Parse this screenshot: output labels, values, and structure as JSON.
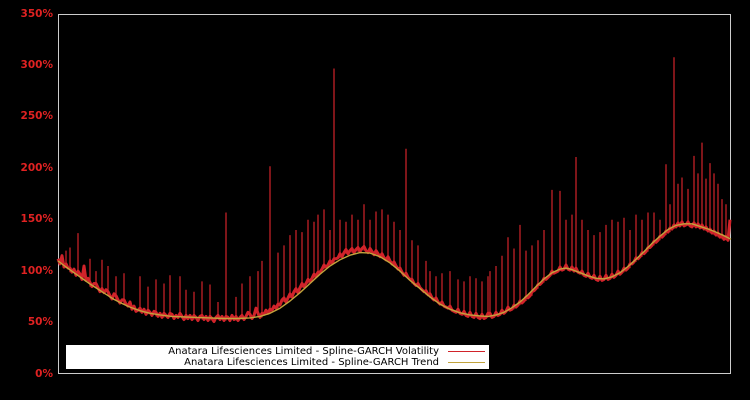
{
  "window": {
    "background": "#000000"
  },
  "chart_data": {
    "type": "line",
    "title": "",
    "xlabel": "",
    "ylabel": "",
    "grid": false,
    "legend_position": "lower-left-inside",
    "ylim": [
      0,
      350
    ],
    "y_unit": "percent",
    "yticks": [
      {
        "label": "0%",
        "value": 0
      },
      {
        "label": "50%",
        "value": 50
      },
      {
        "label": "100%",
        "value": 100
      },
      {
        "label": "150%",
        "value": 150
      },
      {
        "label": "200%",
        "value": 200
      },
      {
        "label": "250%",
        "value": 250
      },
      {
        "label": "300%",
        "value": 300
      },
      {
        "label": "350%",
        "value": 350
      }
    ],
    "colors": {
      "background": "#000000",
      "plot_border": "#cccccc",
      "axis_label": "#e02222",
      "volatility": "#d1232a",
      "trend": "#c2a33c",
      "legend_bg": "#ffffff",
      "legend_text": "#000000"
    },
    "series": [
      {
        "name": "Anatara Lifesciences Limited - Spline-GARCH Volatility",
        "color": "#d1232a"
      },
      {
        "name": "Anatara Lifesciences Limited - Spline-GARCH Trend",
        "color": "#c2a33c"
      }
    ],
    "volatility": {
      "x0": 58,
      "dx": 2,
      "unit": "percent",
      "values": [
        112,
        107,
        115,
        104,
        120,
        103,
        123,
        99,
        102,
        96,
        137,
        97,
        92,
        105,
        91,
        93,
        112,
        85,
        88,
        100,
        84,
        80,
        111,
        79,
        82,
        105,
        76,
        73,
        78,
        95,
        72,
        69,
        72,
        98,
        68,
        66,
        70,
        63,
        66,
        61,
        62,
        95,
        60,
        63,
        58,
        85,
        60,
        57,
        61,
        92,
        56,
        59,
        55,
        88,
        57,
        55,
        96,
        58,
        54,
        57,
        55,
        95,
        56,
        53,
        82,
        54,
        57,
        53,
        80,
        55,
        52,
        56,
        90,
        53,
        56,
        52,
        87,
        54,
        51,
        55,
        70,
        53,
        56,
        52,
        157,
        55,
        52,
        57,
        53,
        75,
        52,
        55,
        88,
        53,
        56,
        60,
        95,
        54,
        57,
        64,
        100,
        55,
        110,
        58,
        62,
        59,
        202,
        62,
        66,
        64,
        118,
        67,
        72,
        125,
        70,
        74,
        135,
        75,
        80,
        140,
        79,
        84,
        138,
        85,
        88,
        150,
        90,
        93,
        148,
        95,
        155,
        99,
        102,
        160,
        104,
        106,
        140,
        108,
        297,
        112,
        113,
        150,
        114,
        118,
        148,
        117,
        120,
        155,
        118,
        121,
        150,
        119,
        122,
        165,
        120,
        118,
        150,
        119,
        116,
        158,
        117,
        114,
        160,
        113,
        111,
        155,
        110,
        107,
        148,
        105,
        102,
        140,
        99,
        96,
        219,
        94,
        92,
        130,
        88,
        86,
        125,
        84,
        82,
        80,
        110,
        77,
        100,
        74,
        72,
        95,
        70,
        68,
        98,
        66,
        65,
        64,
        100,
        62,
        61,
        60,
        92,
        59,
        58,
        90,
        57,
        56,
        95,
        56,
        55,
        93,
        55,
        54,
        90,
        54,
        55,
        95,
        100,
        55,
        56,
        105,
        57,
        58,
        115,
        59,
        61,
        133,
        62,
        63,
        122,
        65,
        67,
        145,
        69,
        71,
        120,
        74,
        76,
        125,
        81,
        83,
        130,
        87,
        89,
        140,
        92,
        94,
        96,
        179,
        98,
        99,
        100,
        178,
        101,
        102,
        150,
        102,
        101,
        155,
        100,
        211,
        99,
        98,
        150,
        96,
        95,
        140,
        94,
        93,
        135,
        92,
        91,
        138,
        91,
        92,
        145,
        92,
        93,
        150,
        94,
        96,
        148,
        97,
        99,
        152,
        101,
        103,
        140,
        107,
        109,
        155,
        112,
        114,
        150,
        117,
        119,
        157,
        123,
        125,
        157,
        128,
        130,
        150,
        133,
        135,
        204,
        138,
        165,
        141,
        308,
        143,
        185,
        144,
        191,
        144,
        145,
        180,
        144,
        143,
        212,
        143,
        195,
        142,
        225,
        141,
        190,
        139,
        205,
        137,
        195,
        135,
        185,
        133,
        170,
        131,
        165,
        130,
        150
      ]
    },
    "trend": {
      "unit": "percent",
      "points": [
        [
          58,
          110
        ],
        [
          66,
          104
        ],
        [
          74,
          98.5
        ],
        [
          82,
          93
        ],
        [
          90,
          87.5
        ],
        [
          98,
          82.5
        ],
        [
          106,
          77.5
        ],
        [
          114,
          72.5
        ],
        [
          122,
          68.5
        ],
        [
          130,
          65
        ],
        [
          140,
          61.5
        ],
        [
          150,
          59
        ],
        [
          160,
          57.5
        ],
        [
          172,
          56
        ],
        [
          184,
          55.5
        ],
        [
          196,
          55
        ],
        [
          210,
          54.5
        ],
        [
          224,
          54
        ],
        [
          238,
          54
        ],
        [
          250,
          54.5
        ],
        [
          260,
          56
        ],
        [
          270,
          59
        ],
        [
          280,
          64
        ],
        [
          290,
          71
        ],
        [
          300,
          79
        ],
        [
          310,
          88
        ],
        [
          320,
          97
        ],
        [
          330,
          105
        ],
        [
          340,
          111
        ],
        [
          350,
          115.5
        ],
        [
          360,
          118
        ],
        [
          370,
          117.5
        ],
        [
          380,
          114
        ],
        [
          390,
          108
        ],
        [
          400,
          100
        ],
        [
          410,
          91
        ],
        [
          420,
          83
        ],
        [
          430,
          75
        ],
        [
          440,
          68
        ],
        [
          450,
          63
        ],
        [
          460,
          59.5
        ],
        [
          470,
          57.5
        ],
        [
          480,
          56.5
        ],
        [
          488,
          56
        ],
        [
          496,
          57.5
        ],
        [
          504,
          60
        ],
        [
          512,
          64.5
        ],
        [
          520,
          70
        ],
        [
          528,
          77
        ],
        [
          536,
          85
        ],
        [
          544,
          92.5
        ],
        [
          552,
          98.5
        ],
        [
          560,
          102
        ],
        [
          566,
          103
        ],
        [
          572,
          101.5
        ],
        [
          580,
          98.5
        ],
        [
          588,
          95.5
        ],
        [
          596,
          93
        ],
        [
          604,
          92.5
        ],
        [
          612,
          94.5
        ],
        [
          620,
          98.5
        ],
        [
          628,
          104.5
        ],
        [
          636,
          111.5
        ],
        [
          644,
          119
        ],
        [
          652,
          127
        ],
        [
          660,
          134
        ],
        [
          668,
          140.5
        ],
        [
          676,
          144.5
        ],
        [
          684,
          146
        ],
        [
          692,
          146
        ],
        [
          700,
          143.5
        ],
        [
          708,
          141
        ],
        [
          716,
          138
        ],
        [
          724,
          134.5
        ],
        [
          731,
          131
        ]
      ]
    }
  }
}
